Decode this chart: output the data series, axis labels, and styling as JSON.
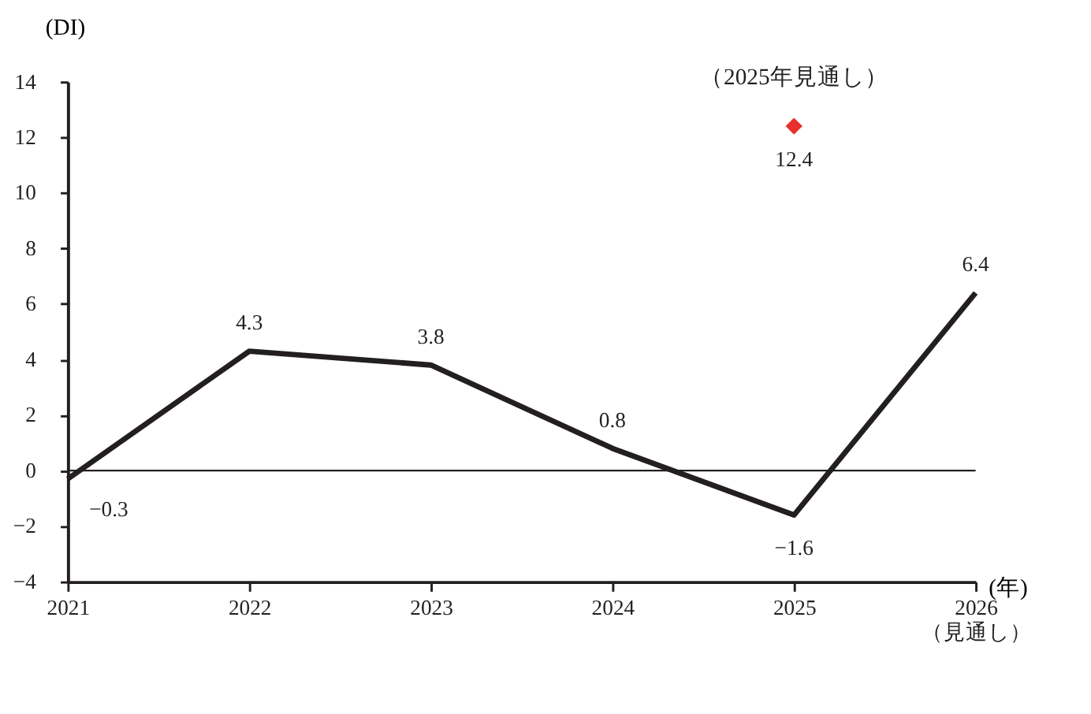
{
  "chart_data": {
    "type": "line",
    "ylabel": "(DI)",
    "xlabel": "(年)",
    "x": [
      2021,
      2022,
      2023,
      2024,
      2025,
      2026
    ],
    "series": [
      {
        "color": "#231f20",
        "values": [
          -0.3,
          4.3,
          3.8,
          0.8,
          -1.6,
          6.4
        ],
        "marker": "none"
      },
      {
        "type": "scatter",
        "color": "#e8302a",
        "marker": "diamond",
        "x": [
          2025
        ],
        "values": [
          12.4
        ]
      }
    ],
    "data_labels": true,
    "xlim": [
      2021,
      2026
    ],
    "xticks": [
      2021,
      2022,
      2023,
      2024,
      2025,
      {
        "value": 2026,
        "label": "2026\n（見通し）"
      }
    ],
    "ylim": [
      -4,
      14
    ],
    "yticks": [
      -4,
      -2,
      0,
      2,
      4,
      6,
      8,
      10,
      12,
      14
    ],
    "ref_lines": [
      {
        "axis": "y",
        "value": 0,
        "color": "#231f20"
      }
    ],
    "annotations": [
      "（2025年見通し）"
    ],
    "grid": false,
    "line_style": "solid"
  }
}
